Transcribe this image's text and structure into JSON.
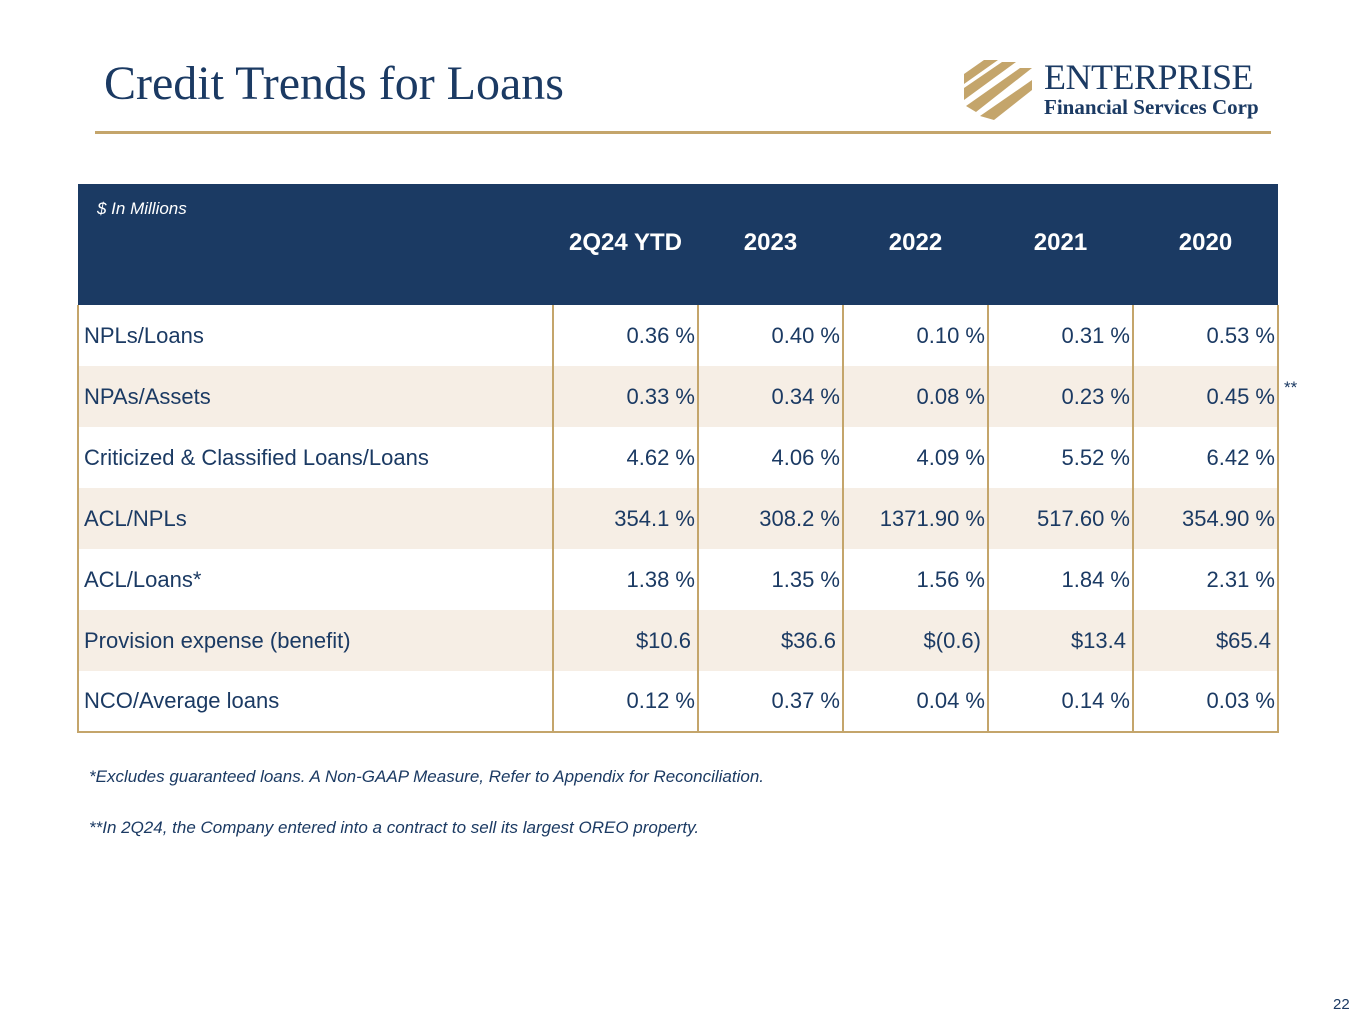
{
  "title": "Credit Trends for Loans",
  "logo": {
    "name": "ENTERPRISE",
    "subtitle": "Financial Services Corp"
  },
  "table": {
    "units_label": "$ In Millions",
    "columns": [
      "2Q24 YTD",
      "2023",
      "2022",
      "2021",
      "2020"
    ],
    "rows": [
      {
        "label": "NPLs/Loans",
        "values": [
          "0.36 %",
          "0.40 %",
          "0.10 %",
          "0.31 %",
          "0.53 %"
        ]
      },
      {
        "label": "NPAs/Assets",
        "values": [
          "0.33 %",
          "0.34 %",
          "0.08 %",
          "0.23 %",
          "0.45 %"
        ]
      },
      {
        "label": "Criticized & Classified Loans/Loans",
        "values": [
          "4.62 %",
          "4.06 %",
          "4.09 %",
          "5.52 %",
          "6.42 %"
        ]
      },
      {
        "label": "ACL/NPLs",
        "values": [
          "354.1 %",
          "308.2 %",
          "1371.90 %",
          "517.60 %",
          "354.90 %"
        ]
      },
      {
        "label": "ACL/Loans*",
        "values": [
          "1.38 %",
          "1.35 %",
          "1.56 %",
          "1.84 %",
          "2.31 %"
        ]
      },
      {
        "label": "Provision expense (benefit)",
        "values": [
          "$10.6",
          "$36.6",
          "$(0.6)",
          "$13.4",
          "$65.4"
        ]
      },
      {
        "label": "NCO/Average loans",
        "values": [
          "0.12 %",
          "0.37 %",
          "0.04 %",
          "0.14 %",
          "0.03 %"
        ]
      }
    ],
    "npa_footnote_marker": "**"
  },
  "footnotes": {
    "note1": "*Excludes guaranteed loans. A Non-GAAP Measure, Refer to Appendix for Reconciliation.",
    "note2": "**In 2Q24, the Company entered into a contract to sell its largest OREO property."
  },
  "page_number": "22",
  "colors": {
    "navy": "#1b3a63",
    "gold": "#c4a56b",
    "stripe": "#f6eee5"
  }
}
